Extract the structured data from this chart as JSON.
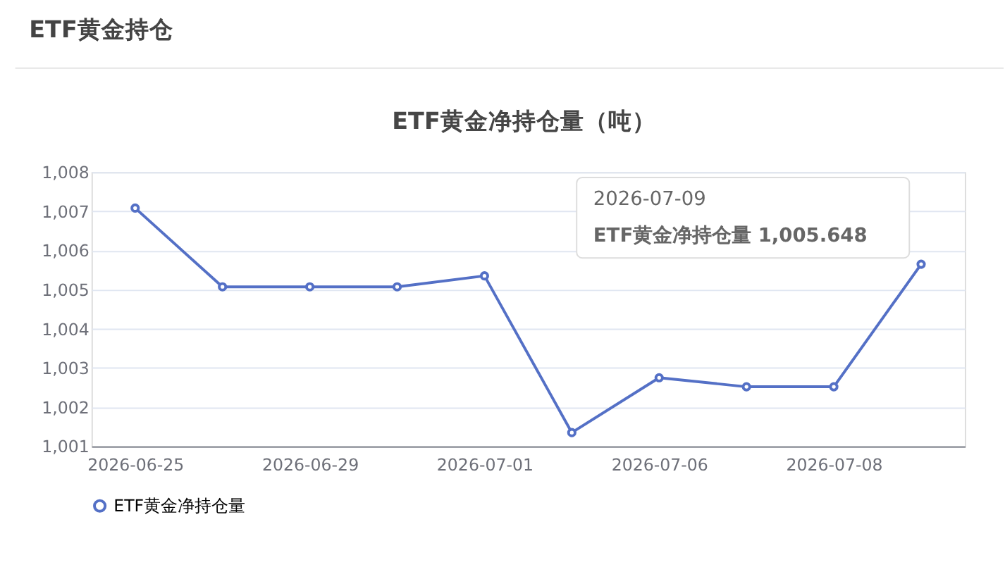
{
  "chart_data": {
    "type": "line",
    "title": "ETF黄金净持仓量（吨）",
    "categories": [
      "2026-06-25",
      null,
      "2026-06-29",
      null,
      "2026-07-01",
      null,
      "2026-07-06",
      null,
      "2026-07-08",
      null
    ],
    "series": [
      {
        "name": "ETF黄金净持仓量",
        "color": "#5470c6",
        "values": [
          1007.08,
          1005.07,
          1005.07,
          1005.07,
          1005.35,
          1001.35,
          1002.75,
          1002.52,
          1002.52,
          1005.648
        ]
      }
    ],
    "ylim": [
      1001,
      1008
    ],
    "yticks": [
      {
        "value": 1001,
        "label": "1,001"
      },
      {
        "value": 1002,
        "label": "1,002"
      },
      {
        "value": 1003,
        "label": "1,003"
      },
      {
        "value": 1004,
        "label": "1,004"
      },
      {
        "value": 1005,
        "label": "1,005"
      },
      {
        "value": 1006,
        "label": "1,006"
      },
      {
        "value": 1007,
        "label": "1,007"
      },
      {
        "value": 1008,
        "label": "1,008"
      }
    ],
    "grid": "y",
    "legend": "bottom",
    "marker": "circle",
    "line_style": "solid",
    "annotations": [
      "ETF黄金持仓",
      "2026-07-09",
      "ETF黄金净持仓量  1,005.648"
    ]
  }
}
